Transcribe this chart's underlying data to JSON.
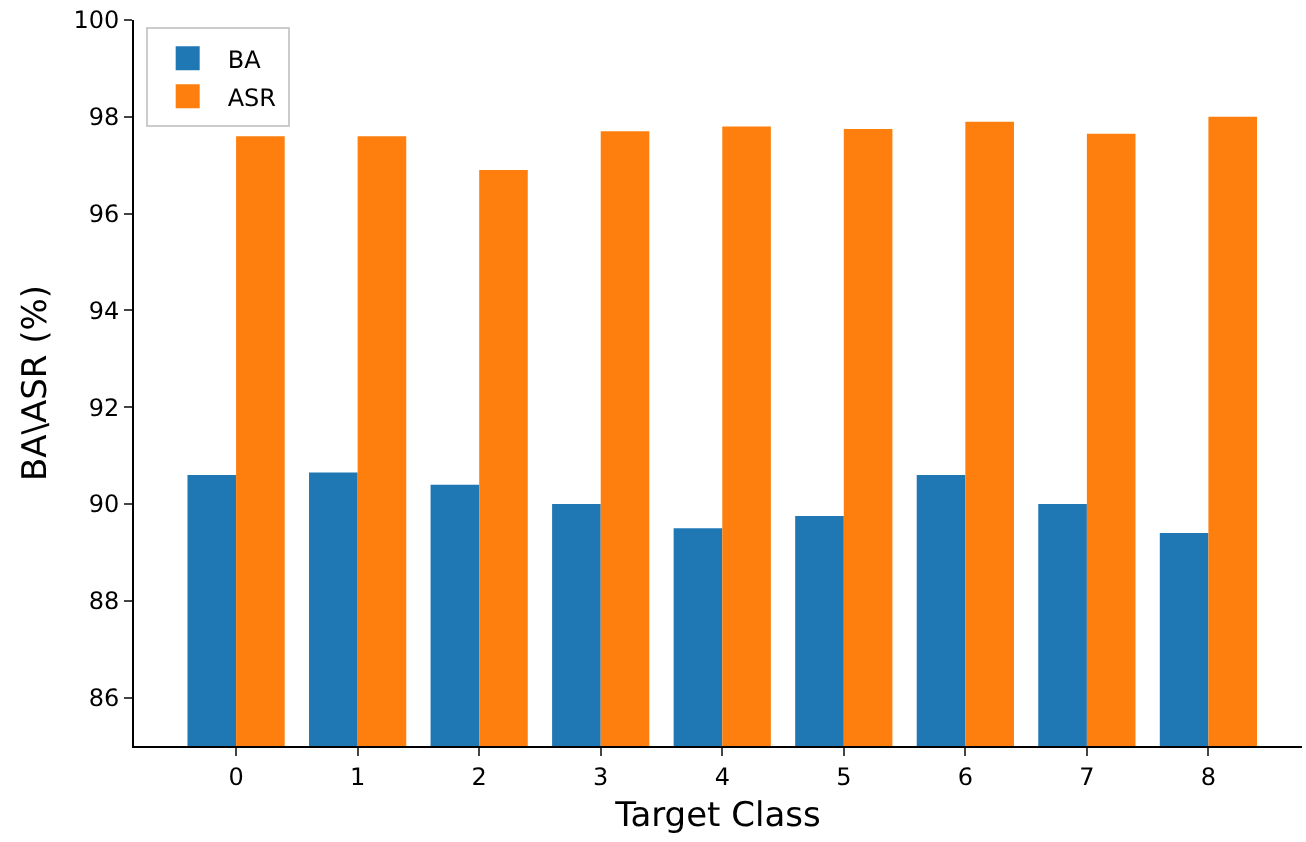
{
  "chart_data": {
    "type": "bar",
    "xlabel": "Target Class",
    "ylabel": "BA\\ASR (%)",
    "categories": [
      "0",
      "1",
      "2",
      "3",
      "4",
      "5",
      "6",
      "7",
      "8"
    ],
    "series": [
      {
        "name": "BA",
        "color": "#1f77b4",
        "values": [
          90.6,
          90.65,
          90.4,
          90.0,
          89.5,
          89.75,
          90.6,
          90.0,
          89.4
        ]
      },
      {
        "name": "ASR",
        "color": "#ff7f0e",
        "values": [
          97.6,
          97.6,
          96.9,
          97.7,
          97.8,
          97.75,
          97.9,
          97.65,
          98.0
        ]
      }
    ],
    "ylim": [
      85,
      100
    ],
    "yticks": [
      86,
      88,
      90,
      92,
      94,
      96,
      98,
      100
    ],
    "grid": false,
    "legend": "top left"
  }
}
